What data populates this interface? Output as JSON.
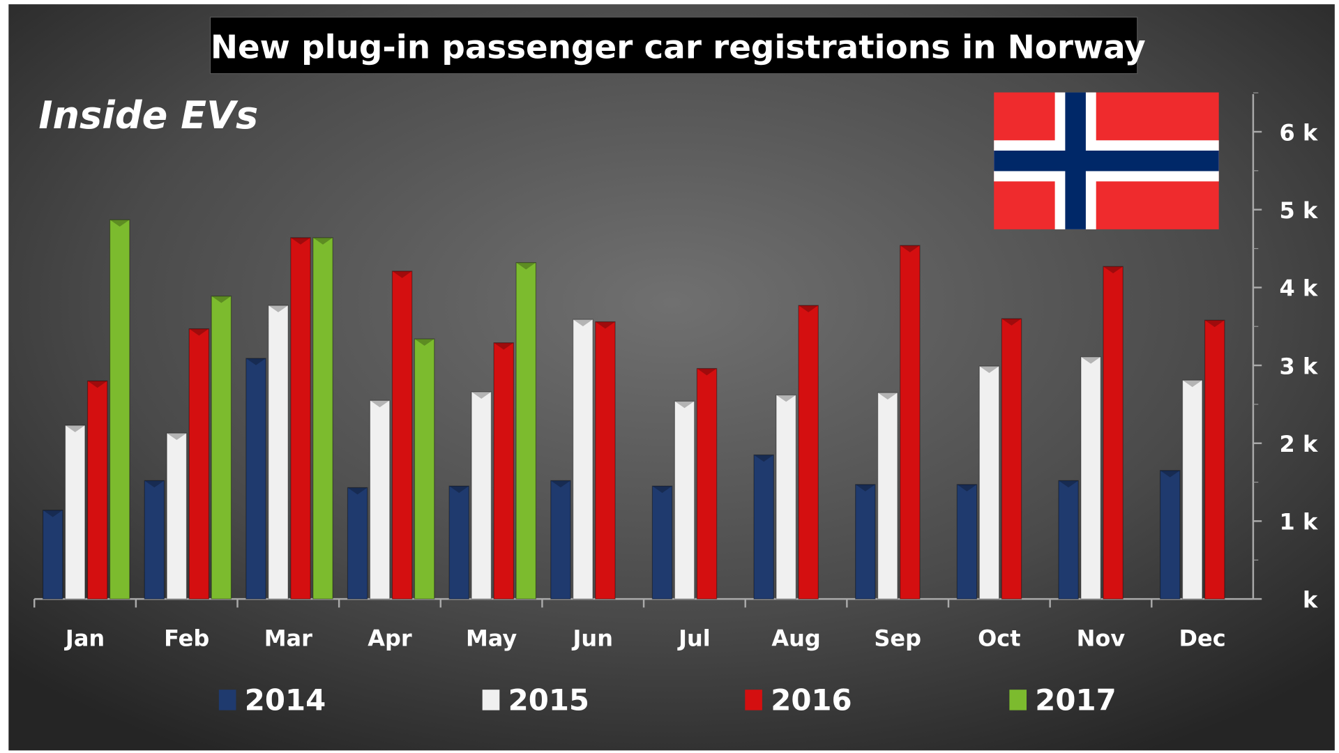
{
  "chart_data": {
    "type": "bar",
    "title": "New plug-in passenger car registrations in Norway",
    "watermark": "Inside EVs",
    "categories": [
      "Jan",
      "Feb",
      "Mar",
      "Apr",
      "May",
      "Jun",
      "Jul",
      "Aug",
      "Sep",
      "Oct",
      "Nov",
      "Dec"
    ],
    "unit": "k",
    "ylim": [
      0,
      6.5
    ],
    "yticks": [
      0,
      1,
      2,
      3,
      4,
      5,
      6
    ],
    "ytick_labels": [
      "k",
      "1 k",
      "2 k",
      "3 k",
      "4 k",
      "5 k",
      "6 k"
    ],
    "y_axis_side": "right",
    "grid": false,
    "legend_position": "bottom",
    "series": [
      {
        "name": "2014",
        "color": "#1f3a6e",
        "values": [
          1.14,
          1.52,
          3.09,
          1.43,
          1.45,
          1.52,
          1.45,
          1.85,
          1.47,
          1.47,
          1.52,
          1.65
        ]
      },
      {
        "name": "2015",
        "color": "#f0f0f0",
        "values": [
          2.23,
          2.13,
          3.77,
          2.55,
          2.66,
          3.59,
          2.54,
          2.62,
          2.65,
          2.99,
          3.11,
          2.81
        ]
      },
      {
        "name": "2016",
        "color": "#d40f10",
        "values": [
          2.8,
          3.47,
          4.64,
          4.21,
          3.29,
          3.56,
          2.96,
          3.77,
          4.54,
          3.6,
          4.27,
          3.58
        ]
      },
      {
        "name": "2017",
        "color": "#7cbb2e",
        "values": [
          4.87,
          3.89,
          4.64,
          3.34,
          4.32,
          null,
          null,
          null,
          null,
          null,
          null,
          null
        ]
      }
    ]
  },
  "colors": {
    "flag_red": "#ef2b2d",
    "flag_blue": "#002868",
    "flag_white": "#ffffff"
  }
}
